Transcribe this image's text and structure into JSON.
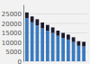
{
  "chart_data": {
    "type": "bar",
    "stacked": true,
    "grid": true,
    "tick_labels": "y",
    "categories": [
      null,
      null,
      null,
      null,
      null,
      null,
      null,
      null,
      null,
      null,
      null,
      null
    ],
    "series": [
      {
        "color": "#3a7abf",
        "values": [
          22800,
          20600,
          19000,
          17400,
          16200,
          15000,
          13500,
          12400,
          11500,
          10200,
          8200,
          7900
        ]
      },
      {
        "color": "#1a1a2e",
        "values": [
          3000,
          3100,
          3200,
          3100,
          3000,
          2900,
          2700,
          2600,
          2600,
          2500,
          2400,
          2400
        ]
      }
    ],
    "ylim": [
      0,
      30000
    ],
    "yticks": [
      0,
      5000,
      10000,
      15000,
      20000,
      25000
    ]
  }
}
